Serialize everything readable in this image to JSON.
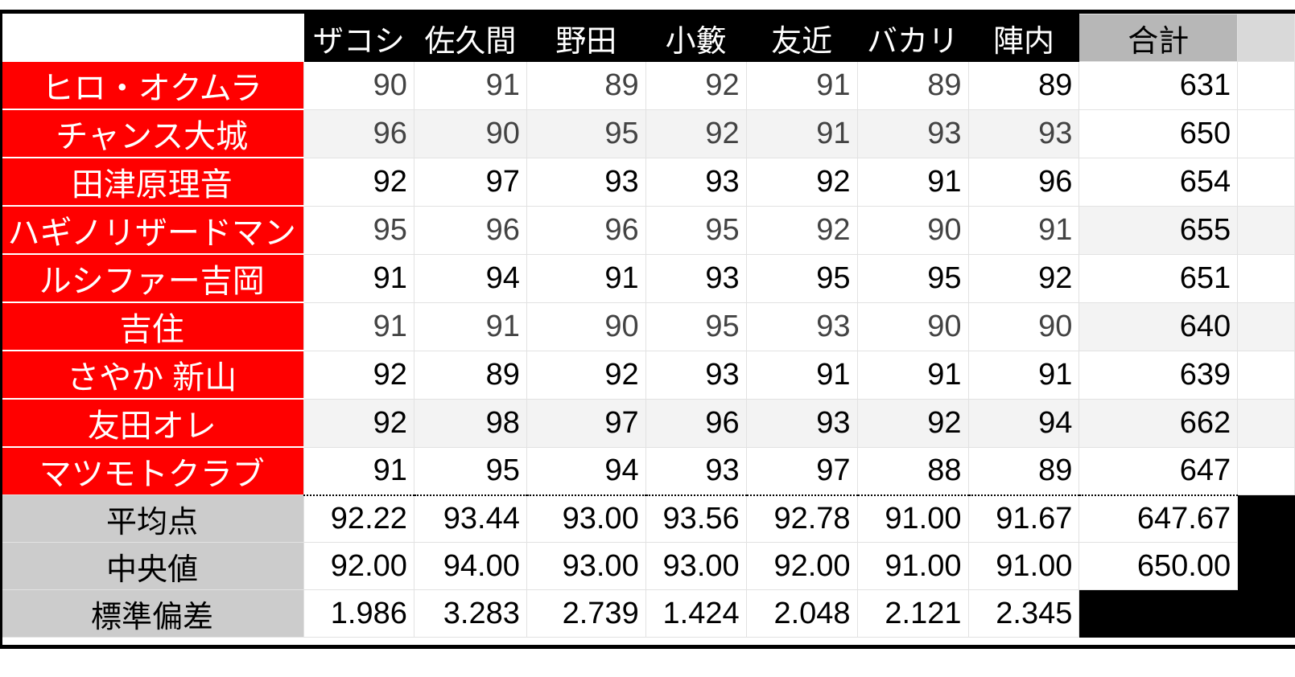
{
  "header": {
    "judges": [
      "ザコシ",
      "佐久間",
      "野田",
      "小籔",
      "友近",
      "バカリ",
      "陣内"
    ],
    "total_label": "合計"
  },
  "rows": [
    {
      "name": "ヒロ・オクムラ",
      "scores": [
        90,
        91,
        89,
        92,
        91,
        89,
        89
      ],
      "total": 631,
      "muted": true,
      "alt": false,
      "total_alt": false
    },
    {
      "name": "チャンス大城",
      "scores": [
        96,
        90,
        95,
        92,
        91,
        93,
        93
      ],
      "total": 650,
      "muted": true,
      "alt": true,
      "total_alt": false
    },
    {
      "name": "田津原理音",
      "scores": [
        92,
        97,
        93,
        93,
        92,
        91,
        96
      ],
      "total": 654,
      "muted": false,
      "alt": false,
      "total_alt": false
    },
    {
      "name": "ハギノリザードマン",
      "scores": [
        95,
        96,
        96,
        95,
        92,
        90,
        91
      ],
      "total": 655,
      "muted": true,
      "alt": false,
      "total_alt": true
    },
    {
      "name": "ルシファー吉岡",
      "scores": [
        91,
        94,
        91,
        93,
        95,
        95,
        92
      ],
      "total": 651,
      "muted": false,
      "alt": false,
      "total_alt": false
    },
    {
      "name": "吉住",
      "scores": [
        91,
        91,
        90,
        95,
        93,
        90,
        90
      ],
      "total": 640,
      "muted": true,
      "alt": false,
      "total_alt": true
    },
    {
      "name": "さやか 新山",
      "scores": [
        92,
        89,
        92,
        93,
        91,
        91,
        91
      ],
      "total": 639,
      "muted": false,
      "alt": false,
      "total_alt": false
    },
    {
      "name": "友田オレ",
      "scores": [
        92,
        98,
        97,
        96,
        93,
        92,
        94
      ],
      "total": 662,
      "muted": false,
      "alt": true,
      "total_alt": true
    },
    {
      "name": "マツモトクラブ",
      "scores": [
        91,
        95,
        94,
        93,
        97,
        88,
        89
      ],
      "total": 647,
      "muted": false,
      "alt": false,
      "total_alt": false
    }
  ],
  "stats": [
    {
      "label": "平均点",
      "values": [
        "92.22",
        "93.44",
        "93.00",
        "93.56",
        "92.78",
        "91.00",
        "91.67"
      ],
      "total": "647.67"
    },
    {
      "label": "中央値",
      "values": [
        "92.00",
        "94.00",
        "93.00",
        "93.00",
        "92.00",
        "91.00",
        "91.00"
      ],
      "total": "650.00"
    },
    {
      "label": "標準偏差",
      "values": [
        "1.986",
        "3.283",
        "2.739",
        "1.424",
        "2.048",
        "2.121",
        "2.345"
      ],
      "total": ""
    }
  ],
  "colors": {
    "name_bg": "#ff0000",
    "header_bg": "#000000",
    "total_header_bg": "#b7b7b7",
    "stat_label_bg": "#cccccc"
  }
}
